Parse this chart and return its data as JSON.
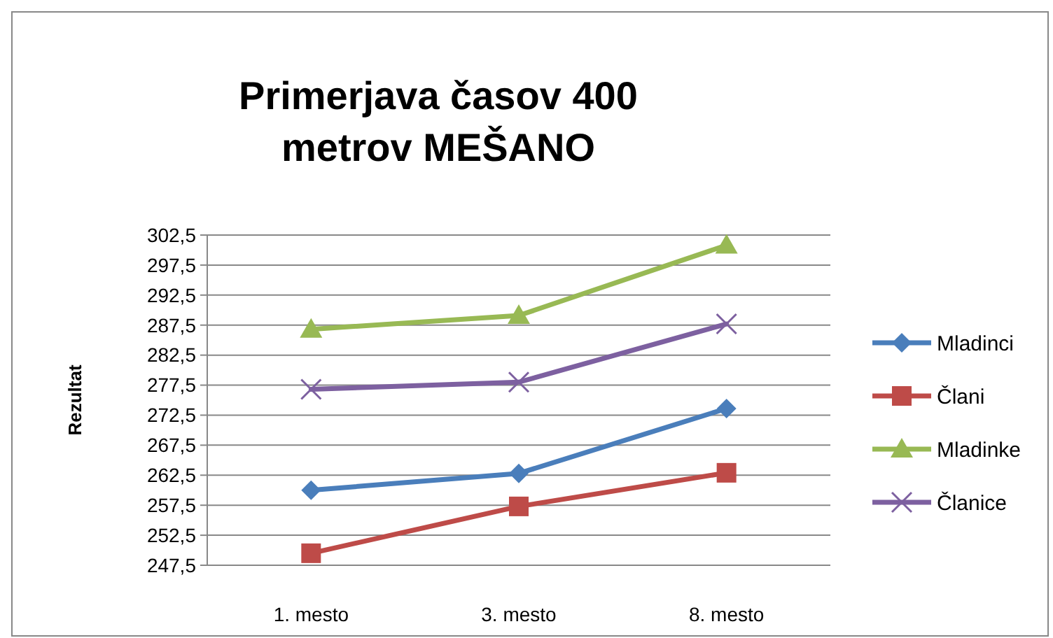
{
  "chart_data": {
    "type": "line",
    "title": "Primerjava časov 400 metrov MEŠANO",
    "ylabel": "Rezultat",
    "categories": [
      "1. mesto",
      "3. mesto",
      "8. mesto"
    ],
    "series": [
      {
        "name": "Mladinci",
        "color": "#4a7ebb",
        "marker": "diamond",
        "values": [
          260.0,
          262.8,
          273.6
        ]
      },
      {
        "name": "Člani",
        "color": "#be4b48",
        "marker": "square",
        "values": [
          249.5,
          257.3,
          262.9
        ]
      },
      {
        "name": "Mladinke",
        "color": "#98b954",
        "marker": "triangle",
        "values": [
          286.8,
          289.1,
          300.8
        ]
      },
      {
        "name": "Članice",
        "color": "#7d60a0",
        "marker": "cross",
        "values": [
          276.8,
          278.0,
          287.7
        ]
      }
    ],
    "ylim": [
      247.5,
      302.5
    ],
    "yticks": [
      {
        "value": 247.5,
        "label": "247,5"
      },
      {
        "value": 252.5,
        "label": "252,5"
      },
      {
        "value": 257.5,
        "label": "257,5"
      },
      {
        "value": 262.5,
        "label": "262,5"
      },
      {
        "value": 267.5,
        "label": "267,5"
      },
      {
        "value": 272.5,
        "label": "272,5"
      },
      {
        "value": 277.5,
        "label": "277,5"
      },
      {
        "value": 282.5,
        "label": "282,5"
      },
      {
        "value": 287.5,
        "label": "287,5"
      },
      {
        "value": 292.5,
        "label": "292,5"
      },
      {
        "value": 297.5,
        "label": "297,5"
      },
      {
        "value": 302.5,
        "label": "302,5"
      }
    ],
    "grid": "y",
    "legend": "right"
  }
}
